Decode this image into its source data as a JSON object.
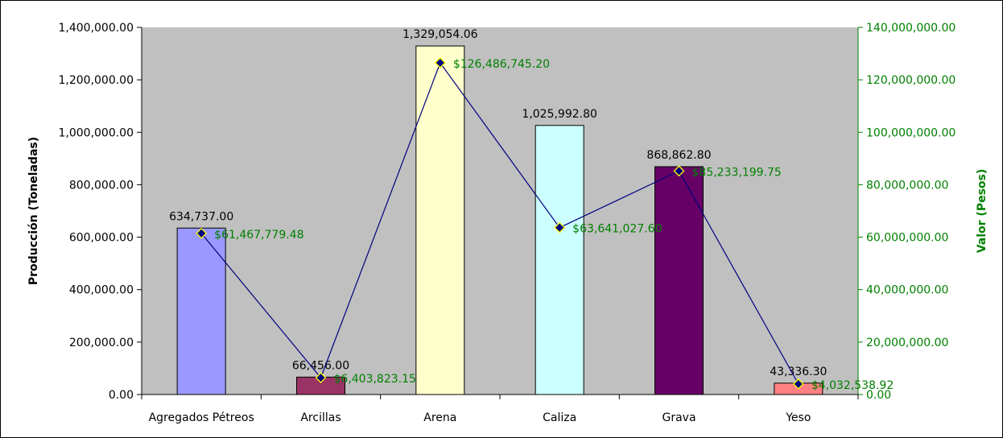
{
  "chart_data": {
    "type": "bar",
    "categories": [
      "Agregados Pétreos",
      "Arcillas",
      "Arena",
      "Caliza",
      "Grava",
      "Yeso"
    ],
    "series": [
      {
        "name": "Producción",
        "type": "bar",
        "axis": "left",
        "values": [
          634737.0,
          66456.0,
          1329054.06,
          1025992.8,
          868862.8,
          43336.3
        ],
        "labels": [
          "634,737.00",
          "66,456.00",
          "1,329,054.06",
          "1,025,992.80",
          "868,862.80",
          "43,336.30"
        ],
        "colors": [
          "#9999ff",
          "#993366",
          "#ffffcc",
          "#ccffff",
          "#660066",
          "#ff8080"
        ]
      },
      {
        "name": "Valor",
        "type": "line",
        "axis": "right",
        "values": [
          61467779.48,
          6403823.15,
          126486745.2,
          63641027.6,
          85233199.75,
          4032538.92
        ],
        "labels": [
          "$61,467,779.48",
          "$6,403,823.15",
          "$126,486,745.20",
          "$63,641,027.60",
          "$85,233,199.75",
          "$4,032,538.92"
        ],
        "line_color": "#000080",
        "marker_fill": "#000080",
        "marker_edge": "#ffff00"
      }
    ],
    "ylabel": "Producción (Toneladas)",
    "y2label": "Valor (Pesos)",
    "ylim": [
      0,
      1400000
    ],
    "y2lim": [
      0,
      140000000
    ],
    "yticks": [
      "0.00",
      "200,000.00",
      "400,000.00",
      "600,000.00",
      "800,000.00",
      "1,000,000.00",
      "1,200,000.00",
      "1,400,000.00"
    ],
    "y2ticks": [
      "0.00",
      "20,000,000.00",
      "40,000,000.00",
      "60,000,000.00",
      "80,000,000.00",
      "100,000,000.00",
      "120,000,000.00",
      "140,000,000.00"
    ],
    "plot_background": "#c0c0c0",
    "y2_color": "#008000",
    "grid": false,
    "legend": "none"
  }
}
